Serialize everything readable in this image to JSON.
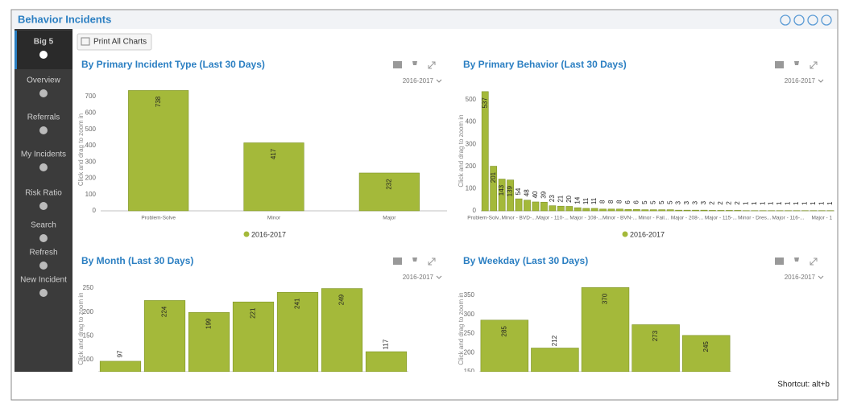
{
  "window": {
    "title": "Behavior Incidents"
  },
  "sidebar": [
    "Big 5",
    "Overview",
    "Referrals",
    "My Incidents",
    "Risk Ratio",
    "Search",
    "Refresh",
    "New Incident"
  ],
  "toolbar": {
    "print": "Print All Charts"
  },
  "footer": "Shortcut: alt+b",
  "chart_data": [
    {
      "type": "bar",
      "title": "By Primary Incident Type (Last 30 Days)",
      "dropdown": "2016-2017",
      "y_label": "Click and drag to zoom in",
      "categories": [
        "Problem-Solve",
        "Minor",
        "Major"
      ],
      "series": [
        {
          "name": "2016-2017",
          "color": "#a4b93a",
          "values": [
            738,
            417,
            232
          ]
        }
      ],
      "ylim": [
        0,
        750
      ],
      "yticks": [
        0,
        100,
        200,
        300,
        400,
        500,
        600,
        700
      ]
    },
    {
      "type": "bar",
      "title": "By Primary Behavior (Last 30 Days)",
      "dropdown": "2016-2017",
      "y_label": "Click and drag to zoom in",
      "categories": [
        "Problem-Solv...",
        null,
        null,
        null,
        "Minor - BVD-...",
        null,
        null,
        null,
        "Major - 110-...",
        null,
        null,
        null,
        "Major - 108-...",
        null,
        null,
        null,
        "Minor - BVN-...",
        null,
        null,
        null,
        "Minor - Fail...",
        null,
        null,
        null,
        "Major - 208-...",
        null,
        null,
        null,
        "Major - 115-...",
        null,
        null,
        null,
        "Minor - Dres...",
        null,
        null,
        null,
        "Major - 116-...",
        null,
        null,
        null,
        "Major - 1",
        null
      ],
      "series": [
        {
          "name": "2016-2017",
          "color": "#a4b93a",
          "values": [
            537,
            201,
            143,
            139,
            54,
            48,
            40,
            39,
            23,
            21,
            20,
            14,
            11,
            11,
            8,
            8,
            8,
            6,
            6,
            5,
            5,
            5,
            5,
            3,
            3,
            3,
            3,
            2,
            2,
            2,
            2,
            1,
            1,
            1,
            1,
            1,
            1,
            1,
            1,
            1,
            1,
            1
          ]
        }
      ],
      "ylim": [
        0,
        540
      ],
      "yticks": [
        0,
        100,
        200,
        300,
        400,
        500
      ]
    },
    {
      "type": "bar",
      "title": "By Month (Last 30 Days)",
      "dropdown": "2016-2017",
      "y_label": "Click and drag to zoom in",
      "categories": [
        null,
        null,
        null,
        null,
        null,
        null,
        null
      ],
      "color": "#a4b93a",
      "values": [
        97,
        224,
        199,
        221,
        241,
        249,
        117
      ],
      "ylim": [
        75,
        255
      ],
      "yticks": [
        100,
        150,
        200,
        250
      ]
    },
    {
      "type": "bar",
      "title": "By Weekday (Last 30 Days)",
      "dropdown": "2016-2017",
      "y_label": "Click and drag to zoom in",
      "categories": [
        null,
        null,
        null,
        null,
        null
      ],
      "color": "#a4b93a",
      "values": [
        285,
        212,
        370,
        273,
        245
      ],
      "ylim": [
        150,
        375
      ],
      "yticks": [
        150,
        200,
        250,
        300,
        350
      ]
    }
  ]
}
